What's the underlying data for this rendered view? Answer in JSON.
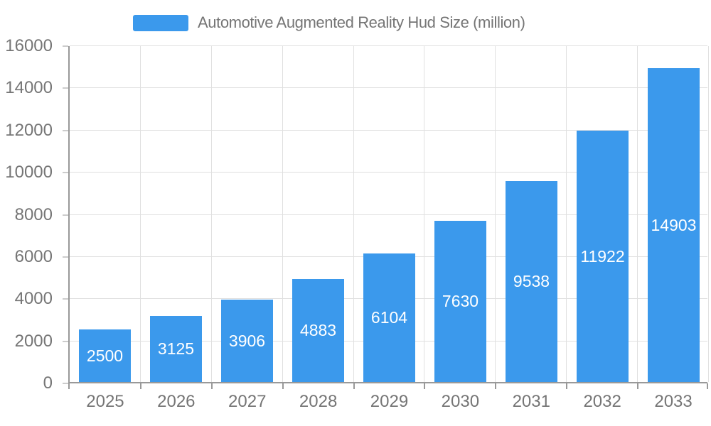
{
  "legend": {
    "label": "Automotive Augmented Reality Hud Size (million)",
    "swatch_color": "#3B99EC"
  },
  "chart_data": {
    "type": "bar",
    "title": "Automotive Augmented Reality Hud Size (million)",
    "series_name": "Automotive Augmented Reality Hud Size (million)",
    "categories": [
      "2025",
      "2026",
      "2027",
      "2028",
      "2029",
      "2030",
      "2031",
      "2032",
      "2033"
    ],
    "values": [
      2500,
      3125,
      3906,
      4883,
      6104,
      7630,
      9538,
      11922,
      14903
    ],
    "value_labels": [
      "2500",
      "3125",
      "3906",
      "4883",
      "6104",
      "7630",
      "9538",
      "11922",
      "14903"
    ],
    "xlabel": "",
    "ylabel": "",
    "ylim": [
      0,
      16000
    ],
    "ytick_step": 2000,
    "yticks": [
      0,
      2000,
      4000,
      6000,
      8000,
      10000,
      12000,
      14000,
      16000
    ],
    "ytick_labels": [
      "0",
      "2000",
      "4000",
      "6000",
      "8000",
      "10000",
      "12000",
      "14000",
      "16000"
    ],
    "grid": true,
    "grid_vertical": true,
    "legend_position": "top",
    "value_label_position": "inside-center"
  },
  "colors": {
    "bar": "#3B99EC",
    "grid": "#e0e0e0",
    "axis": "#999999",
    "tick_text": "#757575",
    "value_label": "#ffffff",
    "background": "#ffffff"
  }
}
